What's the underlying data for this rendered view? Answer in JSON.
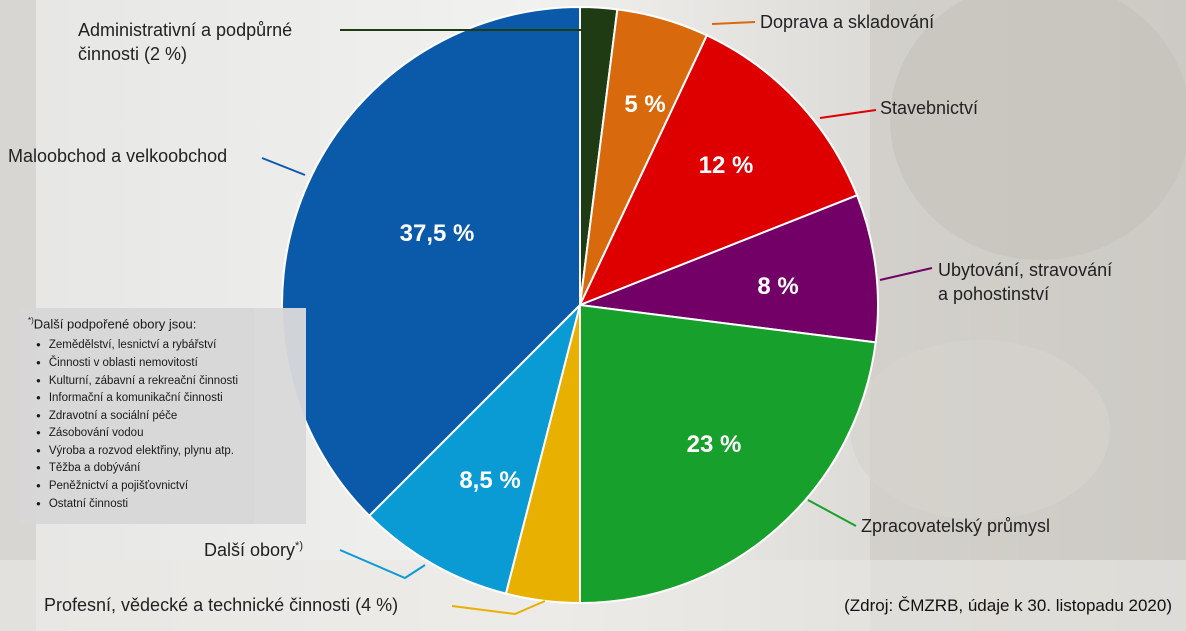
{
  "chart_data": {
    "type": "pie",
    "slices": [
      {
        "label": "Administrativní a podpůrné činnosti (2 %)",
        "value": 2,
        "value_label": "",
        "color": "#1f3b14"
      },
      {
        "label": "Doprava a skladování",
        "value": 5,
        "value_label": "5 %",
        "color": "#d8690c"
      },
      {
        "label": "Stavebnictví",
        "value": 12,
        "value_label": "12 %",
        "color": "#de0000"
      },
      {
        "label": "Ubytování, stravování a pohostinství",
        "value": 8,
        "value_label": "8 %",
        "color": "#730066"
      },
      {
        "label": "Zpracovatelský průmysl",
        "value": 23,
        "value_label": "23 %",
        "color": "#18a02c"
      },
      {
        "label": "Profesní, vědecké a technické činnosti (4 %)",
        "value": 4,
        "value_label": "",
        "color": "#e8b000"
      },
      {
        "label": "Další obory",
        "value": 8.5,
        "value_label": "8,5 %",
        "color": "#0a9ad4"
      },
      {
        "label": "Maloobchod a velkoobchod",
        "value": 37.5,
        "value_label": "37,5 %",
        "color": "#0b5aaa"
      }
    ],
    "label_lines": [
      "Administrativní a podpůrné",
      "činnosti (2 %)",
      "Doprava a skladování",
      "Stavebnictví",
      "Ubytování, stravování",
      "a pohostinství",
      "Zpracovatelský průmysl",
      "Profesní, vědecké a technické činnosti (4 %)",
      "Další obory",
      "Maloobchod a velkoobchod"
    ],
    "label_marker": "*)"
  },
  "note": {
    "title_marker": "*)",
    "title": "Další podpořené obory jsou:",
    "items": [
      "Zemědělství, lesnictví a rybářství",
      "Činnosti v oblasti nemovitostí",
      "Kulturní, zábavní a rekreační činnosti",
      "Informační a komunikační činnosti",
      "Zdravotní a sociální péče",
      "Zásobování vodou",
      "Výroba a rozvod elektřiny, plynu atp.",
      "Těžba a dobývání",
      "Peněžnictví a pojišťovnictví",
      "Ostatní činnosti"
    ]
  },
  "source": "(Zdroj: ČMZRB, údaje k 30. listopadu 2020)"
}
